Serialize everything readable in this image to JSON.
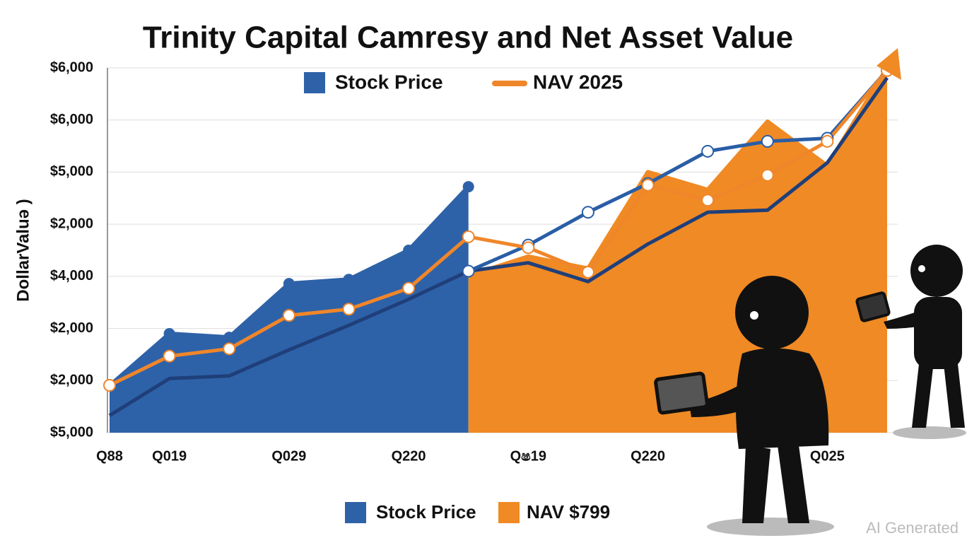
{
  "chart_data": {
    "type": "area",
    "title": "Trinity Capital Camresy and Net Asset Value",
    "y_label": "DollarValuə )",
    "categories": [
      "Q88",
      "Q019",
      null,
      "Q029",
      null,
      "Q220",
      null,
      "Qෂ19",
      null,
      "Q220",
      null,
      null,
      "Q025",
      null
    ],
    "series": [
      {
        "name": "Stock Price",
        "kind": "area",
        "color": "#2e62a8",
        "dots": true,
        "values": [
          0.9,
          1.9,
          1.83,
          2.86,
          2.94,
          3.5,
          4.72,
          null,
          null,
          null,
          null,
          null,
          null,
          null
        ]
      },
      {
        "kind": "area",
        "color": "#f08a24",
        "values": [
          null,
          null,
          null,
          null,
          null,
          null,
          3.01,
          3.38,
          3.15,
          5.0,
          4.66,
          5.97,
          5.12,
          7.0
        ]
      },
      {
        "kind": "line",
        "color": "#1f3f7a",
        "values": [
          0.33,
          1.04,
          1.09,
          1.59,
          2.06,
          2.56,
          3.1,
          3.26,
          2.9,
          3.62,
          4.23,
          4.27,
          5.18,
          6.81
        ]
      },
      {
        "kind": "line",
        "color": "#2a5ea6",
        "dots": true,
        "values": [
          null,
          null,
          null,
          null,
          null,
          null,
          3.1,
          3.6,
          4.23,
          4.78,
          5.4,
          5.59,
          5.65,
          6.95
        ]
      },
      {
        "name": "NAV 2025",
        "kind": "line",
        "color": "#f0862a",
        "dots": true,
        "values": [
          0.91,
          1.47,
          1.61,
          2.25,
          2.37,
          2.77,
          3.76,
          3.55,
          3.08,
          4.75,
          4.46,
          4.94,
          5.59,
          6.95
        ]
      }
    ],
    "legend_bottom": [
      {
        "name": "Stock Price",
        "color": "#2e62a8"
      },
      {
        "name": "NAV $799",
        "color": "#f08a24"
      }
    ],
    "ylim": [
      0,
      7
    ],
    "yticks": [
      {
        "value": 0,
        "label": "$5,000"
      },
      {
        "value": 1,
        "label": "$2,000"
      },
      {
        "value": 2,
        "label": "$2,000"
      },
      {
        "value": 3,
        "label": "$4,000"
      },
      {
        "value": 4,
        "label": "$2,000"
      },
      {
        "value": 5,
        "label": "$5,000"
      },
      {
        "value": 6,
        "label": "$6,000"
      },
      {
        "value": 7,
        "label": "$6,000"
      }
    ],
    "grid": true,
    "watermark": "AI Generated"
  }
}
